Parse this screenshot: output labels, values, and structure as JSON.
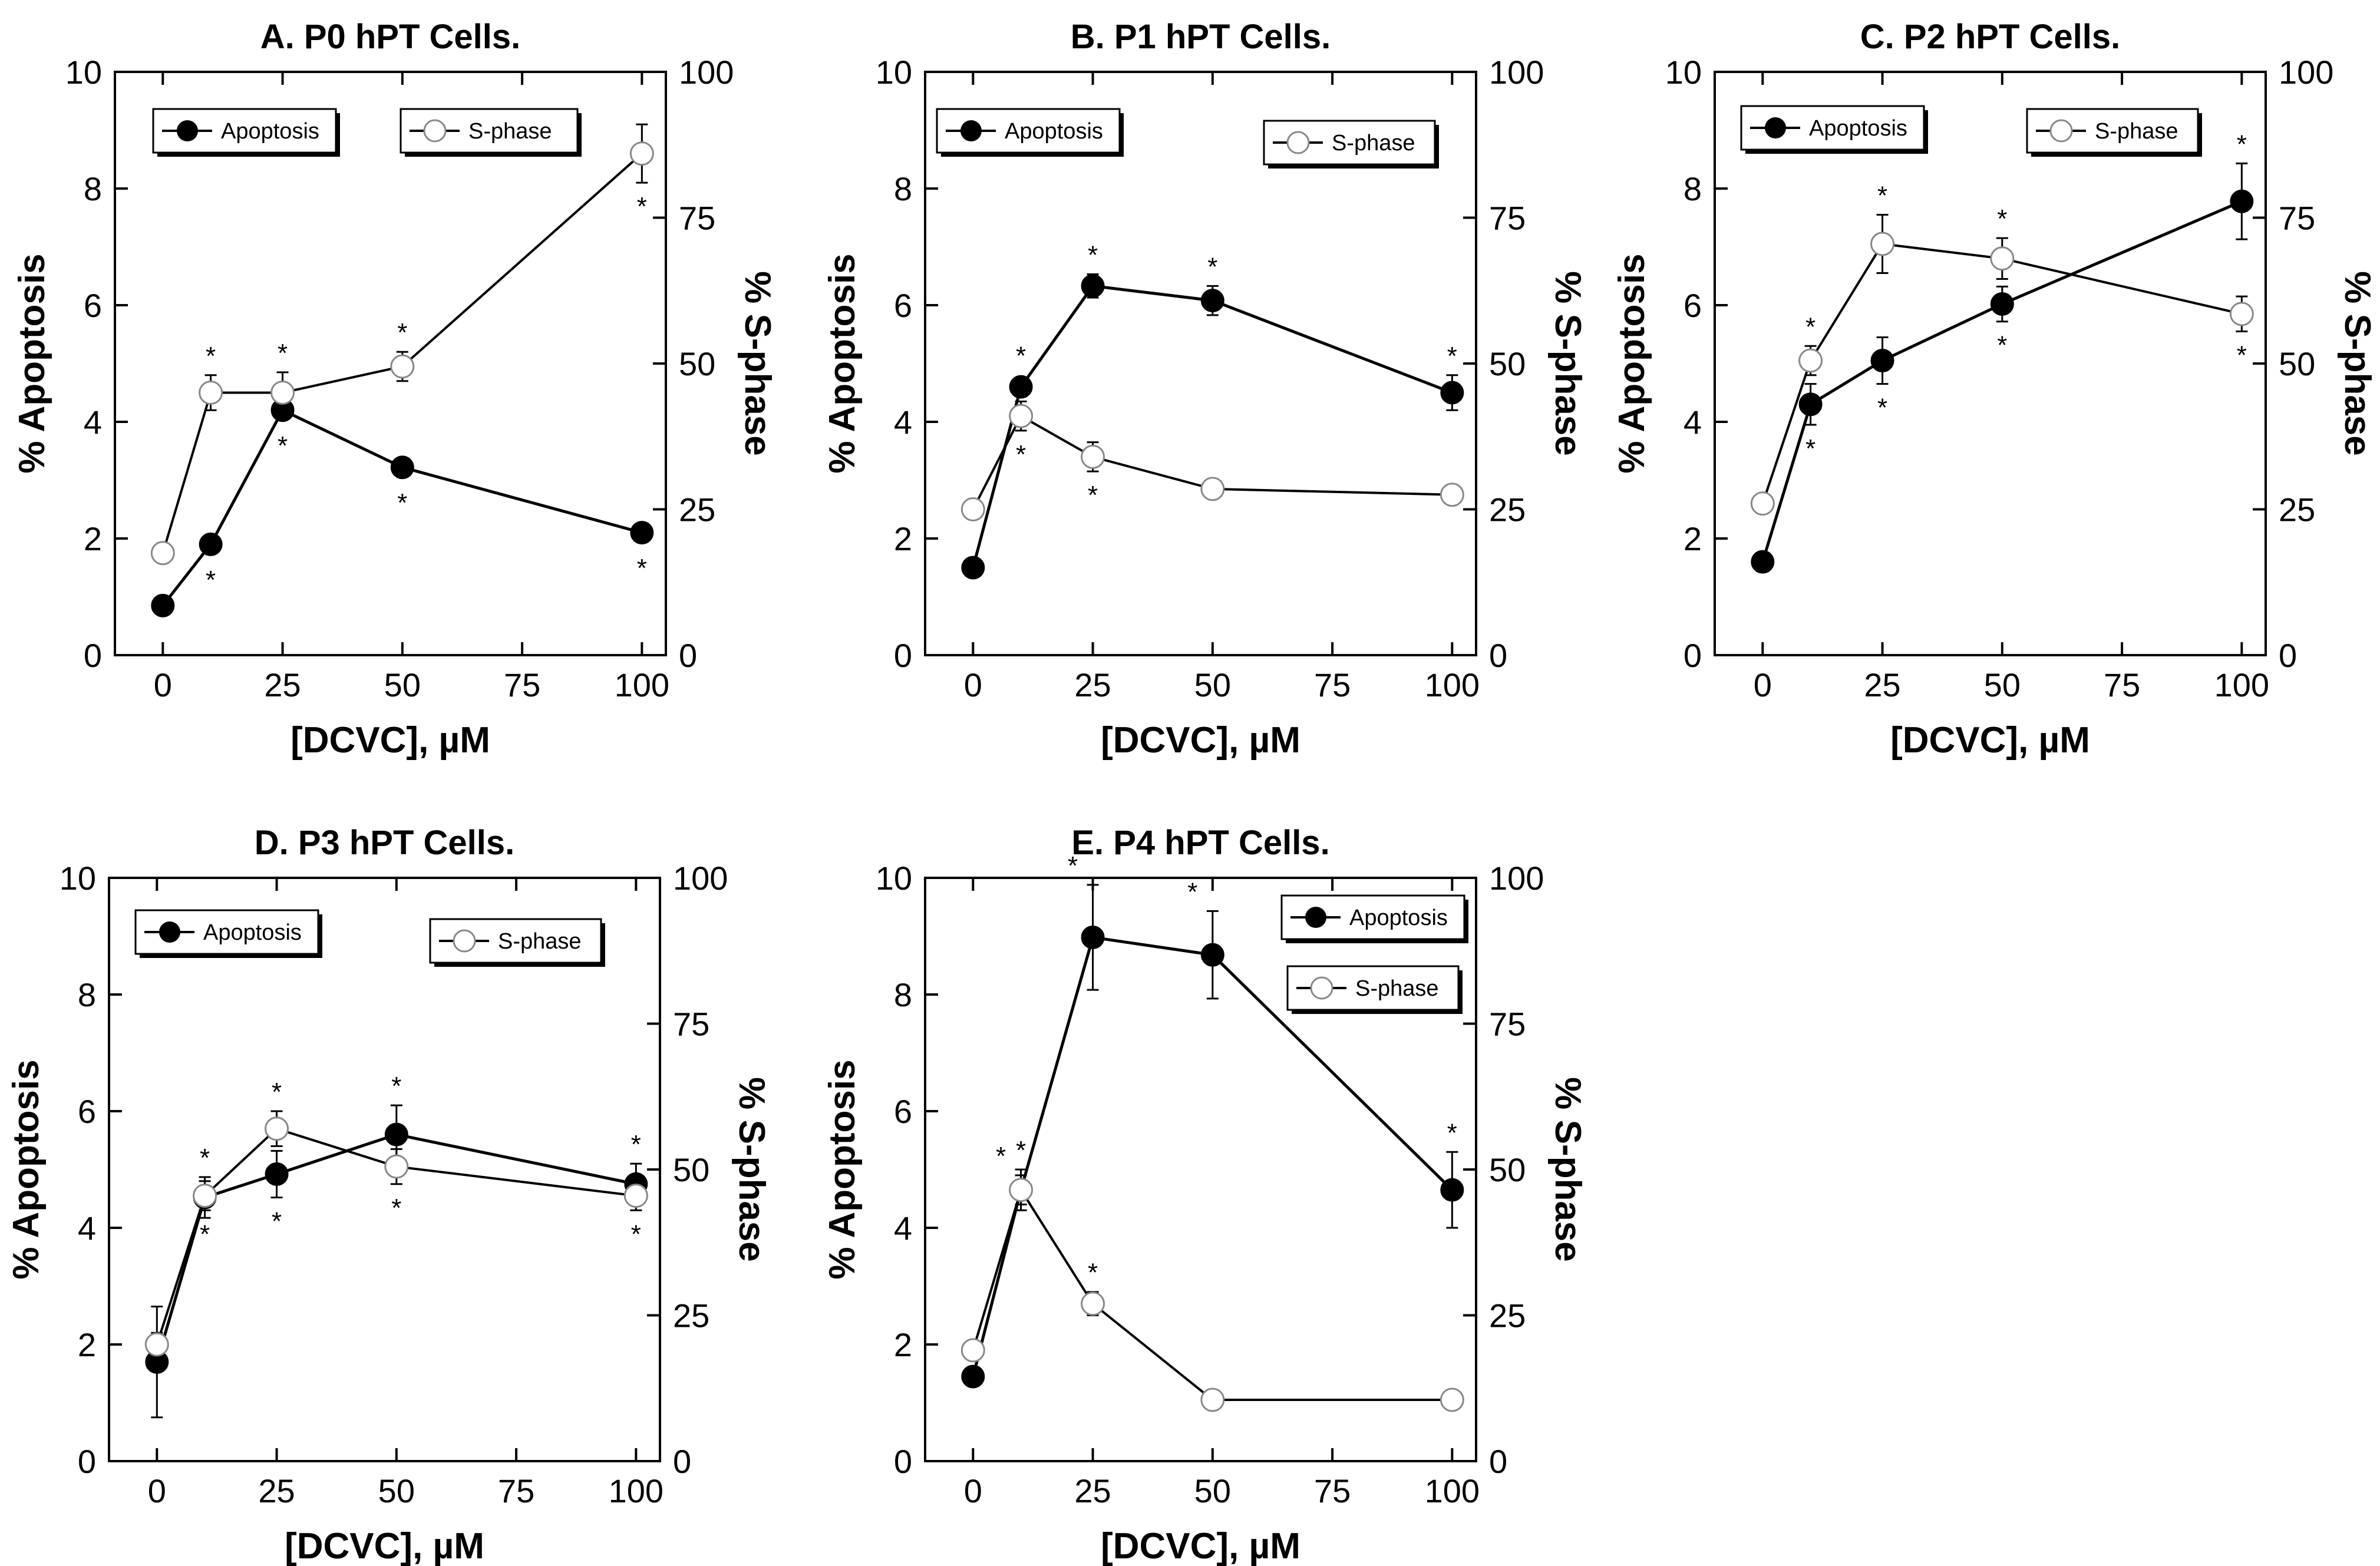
{
  "chart_data": [
    {
      "type": "line",
      "title": "A. P0 hPT Cells.",
      "xlabel": "[DCVC], µM",
      "ylabel": "% Apoptosis",
      "y2label": "% S-phase",
      "xlim": [
        -10,
        105
      ],
      "ylim": [
        0,
        10
      ],
      "y2lim": [
        0,
        100
      ],
      "xticks": [
        0,
        25,
        50,
        75,
        100
      ],
      "yticks": [
        0,
        2,
        4,
        6,
        8,
        10
      ],
      "y2ticks": [
        0,
        25,
        50,
        75,
        100
      ],
      "legend": [
        {
          "label": "Apoptosis",
          "marker": "filled",
          "position": "top-left"
        },
        {
          "label": "S-phase",
          "marker": "open",
          "position": "top-center"
        }
      ],
      "series": [
        {
          "name": "Apoptosis",
          "axis": "left",
          "marker": "filled",
          "x": [
            0,
            10,
            25,
            50,
            100
          ],
          "values": [
            0.85,
            1.9,
            4.2,
            3.22,
            2.1
          ],
          "errors": [
            0,
            0,
            0.15,
            0,
            0
          ],
          "stars": [
            "",
            "below",
            "below",
            "below",
            "below"
          ]
        },
        {
          "name": "S-phase",
          "axis": "right",
          "marker": "open",
          "x": [
            0,
            10,
            25,
            50,
            100
          ],
          "values": [
            17.5,
            45,
            45,
            49.5,
            86
          ],
          "errors": [
            0,
            3,
            3.5,
            2.5,
            5
          ],
          "stars": [
            "",
            "above",
            "above",
            "above",
            "below"
          ]
        }
      ]
    },
    {
      "type": "line",
      "title": "B. P1 hPT Cells.",
      "xlabel": "[DCVC], µM",
      "ylabel": "% Apoptosis",
      "y2label": "% S-phase",
      "xlim": [
        -10,
        105
      ],
      "ylim": [
        0,
        10
      ],
      "y2lim": [
        0,
        100
      ],
      "xticks": [
        0,
        25,
        50,
        75,
        100
      ],
      "yticks": [
        0,
        2,
        4,
        6,
        8,
        10
      ],
      "y2ticks": [
        0,
        25,
        50,
        75,
        100
      ],
      "legend": [
        {
          "label": "Apoptosis",
          "marker": "filled",
          "position": "top-left"
        },
        {
          "label": "S-phase",
          "marker": "open",
          "position": "top-right"
        }
      ],
      "series": [
        {
          "name": "Apoptosis",
          "axis": "left",
          "marker": "filled",
          "x": [
            0,
            10,
            25,
            50,
            100
          ],
          "values": [
            1.5,
            4.6,
            6.33,
            6.08,
            4.5
          ],
          "errors": [
            0,
            0,
            0.2,
            0.25,
            0.3
          ],
          "stars": [
            "",
            "above",
            "above",
            "above",
            "above"
          ]
        },
        {
          "name": "S-phase",
          "axis": "right",
          "marker": "open",
          "x": [
            0,
            10,
            25,
            50,
            100
          ],
          "values": [
            25,
            41,
            34,
            28.5,
            27.5
          ],
          "errors": [
            1,
            2.5,
            2.5,
            1.2,
            1.2
          ],
          "stars": [
            "",
            "below",
            "below",
            "",
            ""
          ]
        }
      ]
    },
    {
      "type": "line",
      "title": "C. P2 hPT Cells.",
      "xlabel": "[DCVC], µM",
      "ylabel": "% Apoptosis",
      "y2label": "% S-phase",
      "xlim": [
        -10,
        105
      ],
      "ylim": [
        0,
        10
      ],
      "y2lim": [
        0,
        100
      ],
      "xticks": [
        0,
        25,
        50,
        75,
        100
      ],
      "yticks": [
        0,
        2,
        4,
        6,
        8,
        10
      ],
      "y2ticks": [
        0,
        25,
        50,
        75,
        100
      ],
      "legend": [
        {
          "label": "Apoptosis",
          "marker": "filled",
          "position": "top-left"
        },
        {
          "label": "S-phase",
          "marker": "open",
          "position": "top-right"
        }
      ],
      "series": [
        {
          "name": "Apoptosis",
          "axis": "left",
          "marker": "filled",
          "x": [
            0,
            10,
            25,
            50,
            100
          ],
          "values": [
            1.6,
            4.3,
            5.05,
            6.02,
            7.78
          ],
          "errors": [
            0,
            0.35,
            0.4,
            0.3,
            0.65
          ],
          "stars": [
            "",
            "below",
            "below",
            "below",
            "above"
          ]
        },
        {
          "name": "S-phase",
          "axis": "right",
          "marker": "open",
          "x": [
            0,
            10,
            25,
            50,
            100
          ],
          "values": [
            26,
            50.5,
            70.5,
            68,
            58.5
          ],
          "errors": [
            1,
            2.5,
            5,
            3.5,
            3
          ],
          "stars": [
            "",
            "above",
            "above",
            "above",
            "below"
          ]
        }
      ]
    },
    {
      "type": "line",
      "title": "D. P3 hPT Cells.",
      "xlabel": "[DCVC], µM",
      "ylabel": "% Apoptosis",
      "y2label": "% S-phase",
      "xlim": [
        -10,
        105
      ],
      "ylim": [
        0,
        10
      ],
      "y2lim": [
        0,
        100
      ],
      "xticks": [
        0,
        25,
        50,
        75,
        100
      ],
      "yticks": [
        0,
        2,
        4,
        6,
        8,
        10
      ],
      "y2ticks": [
        0,
        25,
        50,
        75,
        100
      ],
      "legend": [
        {
          "label": "Apoptosis",
          "marker": "filled",
          "position": "top-left"
        },
        {
          "label": "S-phase",
          "marker": "open",
          "position": "top-right"
        }
      ],
      "series": [
        {
          "name": "Apoptosis",
          "axis": "left",
          "marker": "filled",
          "x": [
            0,
            10,
            25,
            50,
            100
          ],
          "values": [
            1.7,
            4.52,
            4.92,
            5.6,
            4.75
          ],
          "errors": [
            0.95,
            0.35,
            0.4,
            0.5,
            0.35
          ],
          "stars": [
            "",
            "above",
            "below",
            "above",
            "above"
          ]
        },
        {
          "name": "S-phase",
          "axis": "right",
          "marker": "open",
          "x": [
            0,
            10,
            25,
            50,
            100
          ],
          "values": [
            20,
            45.5,
            57,
            50.5,
            45.5
          ],
          "errors": [
            2,
            2.5,
            3,
            3,
            2.5
          ],
          "stars": [
            "",
            "below",
            "above",
            "below",
            "below"
          ]
        }
      ]
    },
    {
      "type": "line",
      "title": "E. P4 hPT Cells.",
      "xlabel": "[DCVC], µM",
      "ylabel": "% Apoptosis",
      "y2label": "% S-phase",
      "xlim": [
        -10,
        105
      ],
      "ylim": [
        0,
        10
      ],
      "y2lim": [
        0,
        100
      ],
      "xticks": [
        0,
        25,
        50,
        75,
        100
      ],
      "yticks": [
        0,
        2,
        4,
        6,
        8,
        10
      ],
      "y2ticks": [
        0,
        25,
        50,
        75,
        100
      ],
      "legend": [
        {
          "label": "Apoptosis",
          "marker": "filled",
          "position": "top-right"
        },
        {
          "label": "S-phase",
          "marker": "open",
          "position": "top-right-lower"
        }
      ],
      "series": [
        {
          "name": "Apoptosis",
          "axis": "left",
          "marker": "filled",
          "x": [
            0,
            10,
            25,
            50,
            100
          ],
          "values": [
            1.45,
            4.65,
            8.98,
            8.68,
            4.65
          ],
          "errors": [
            0,
            0.35,
            0.9,
            0.75,
            0.65
          ],
          "stars": [
            "",
            "above",
            "above-left",
            "above-left",
            "above"
          ]
        },
        {
          "name": "S-phase",
          "axis": "right",
          "marker": "open",
          "x": [
            0,
            10,
            25,
            50,
            100
          ],
          "values": [
            19,
            46.5,
            27,
            10.5,
            10.5
          ],
          "errors": [
            1,
            2.5,
            2,
            1,
            1
          ],
          "stars": [
            "",
            "above-left",
            "above",
            "",
            ""
          ]
        }
      ]
    }
  ]
}
